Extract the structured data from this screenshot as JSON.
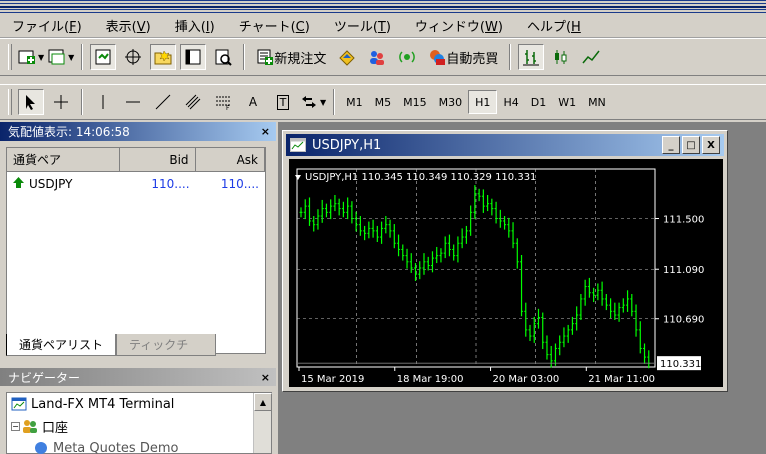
{
  "menubar": {
    "items": [
      {
        "label": "ファイル(",
        "key": "F",
        "suffix": ")"
      },
      {
        "label": "表示(",
        "key": "V",
        "suffix": ")"
      },
      {
        "label": "挿入(",
        "key": "I",
        "suffix": ")"
      },
      {
        "label": "チャート(",
        "key": "C",
        "suffix": ")"
      },
      {
        "label": "ツール(",
        "key": "T",
        "suffix": ")"
      },
      {
        "label": "ウィンドウ(",
        "key": "W",
        "suffix": ")"
      },
      {
        "label": "ヘルプ(",
        "key": "H",
        "suffix": ""
      }
    ]
  },
  "toolbar1": {
    "new_order_label": "新規注文",
    "auto_trading_label": "自動売買"
  },
  "toolbar2": {
    "text_tool_label": "A",
    "label_tool_label": "T",
    "timeframes": [
      "M1",
      "M5",
      "M15",
      "M30",
      "H1",
      "H4",
      "D1",
      "W1",
      "MN"
    ],
    "active_timeframe": "H1"
  },
  "market_watch": {
    "title": "気配値表示: 14:06:58",
    "close_label": "×",
    "columns": [
      "通貨ペア",
      "Bid",
      "Ask"
    ],
    "rows": [
      {
        "symbol": "USDJPY",
        "bid": "110....",
        "ask": "110...."
      }
    ],
    "tabs": [
      "通貨ペアリスト",
      "ティックチ"
    ]
  },
  "navigator": {
    "title": "ナビゲーター",
    "close_label": "×",
    "items": [
      "Land-FX MT4 Terminal",
      "口座",
      "Meta Quotes Demo"
    ]
  },
  "chart_window": {
    "title": "USDJPY,H1",
    "min_label": "_",
    "max_label": "□",
    "close_label": "X",
    "info_line": "USDJPY,H1  110.345 110.349 110.329 110.331",
    "current_price": "110.331",
    "colors": {
      "background": "#000000",
      "candle": "#00ff00",
      "grid": "#c0c0c0",
      "axis": "#ffffff"
    }
  },
  "chart_data": {
    "type": "bar",
    "title": "USDJPY,H1",
    "symbol": "USDJPY",
    "timeframe": "H1",
    "ohlc_last": {
      "open": 110.345,
      "high": 110.349,
      "low": 110.329,
      "close": 110.331
    },
    "y_ticks": [
      111.5,
      111.09,
      110.69
    ],
    "y_tick_labels": [
      "111.500",
      "111.090",
      "110.690"
    ],
    "ylim": [
      110.3,
      111.9
    ],
    "x_tick_labels": [
      "15 Mar 2019",
      "18 Mar 19:00",
      "20 Mar 03:00",
      "21 Mar 11:00"
    ],
    "grid": true,
    "values": [
      111.55,
      111.6,
      111.48,
      111.45,
      111.52,
      111.58,
      111.55,
      111.6,
      111.62,
      111.58,
      111.55,
      111.6,
      111.5,
      111.45,
      111.4,
      111.38,
      111.42,
      111.4,
      111.35,
      111.42,
      111.45,
      111.4,
      111.3,
      111.25,
      111.2,
      111.15,
      111.1,
      111.05,
      111.1,
      111.15,
      111.12,
      111.18,
      111.2,
      111.22,
      111.3,
      111.25,
      111.2,
      111.3,
      111.35,
      111.4,
      111.55,
      111.7,
      111.68,
      111.6,
      111.62,
      111.58,
      111.5,
      111.48,
      111.45,
      111.4,
      111.3,
      111.15,
      110.75,
      110.6,
      110.55,
      110.65,
      110.7,
      110.5,
      110.4,
      110.35,
      110.45,
      110.5,
      110.55,
      110.6,
      110.65,
      110.72,
      110.85,
      110.95,
      110.9,
      110.88,
      110.92,
      110.85,
      110.8,
      110.75,
      110.72,
      110.78,
      110.8,
      110.85,
      110.75,
      110.6,
      110.45,
      110.38,
      110.33
    ]
  }
}
